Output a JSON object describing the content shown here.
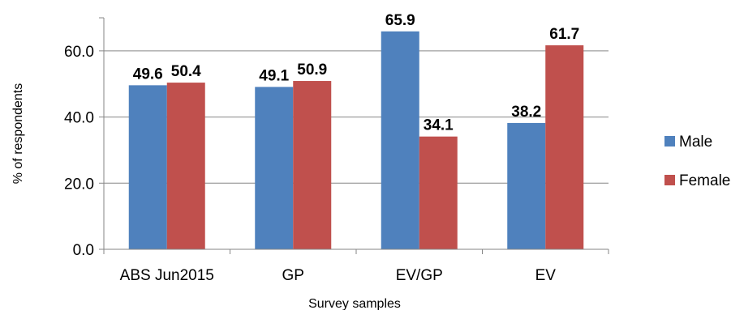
{
  "chart_data": {
    "type": "bar",
    "title": "",
    "xlabel": "Survey samples",
    "ylabel": "% of respondents",
    "categories": [
      "ABS Jun2015",
      "GP",
      "EV/GP",
      "EV"
    ],
    "series": [
      {
        "name": "Male",
        "values": [
          49.6,
          49.1,
          65.9,
          38.2
        ],
        "color": "#4f81bd"
      },
      {
        "name": "Female",
        "values": [
          50.4,
          50.9,
          34.1,
          61.7
        ],
        "color": "#c0504d"
      }
    ],
    "data_labels": [
      [
        "49.6",
        "49.1",
        "65.9",
        "38.2"
      ],
      [
        "50.4",
        "50.9",
        "34.1",
        "61.7"
      ]
    ],
    "yticks": [
      "0.0",
      "20.0",
      "40.0",
      "60.0"
    ],
    "ylim": [
      0,
      70
    ],
    "grid": true,
    "legend_position": "right"
  }
}
